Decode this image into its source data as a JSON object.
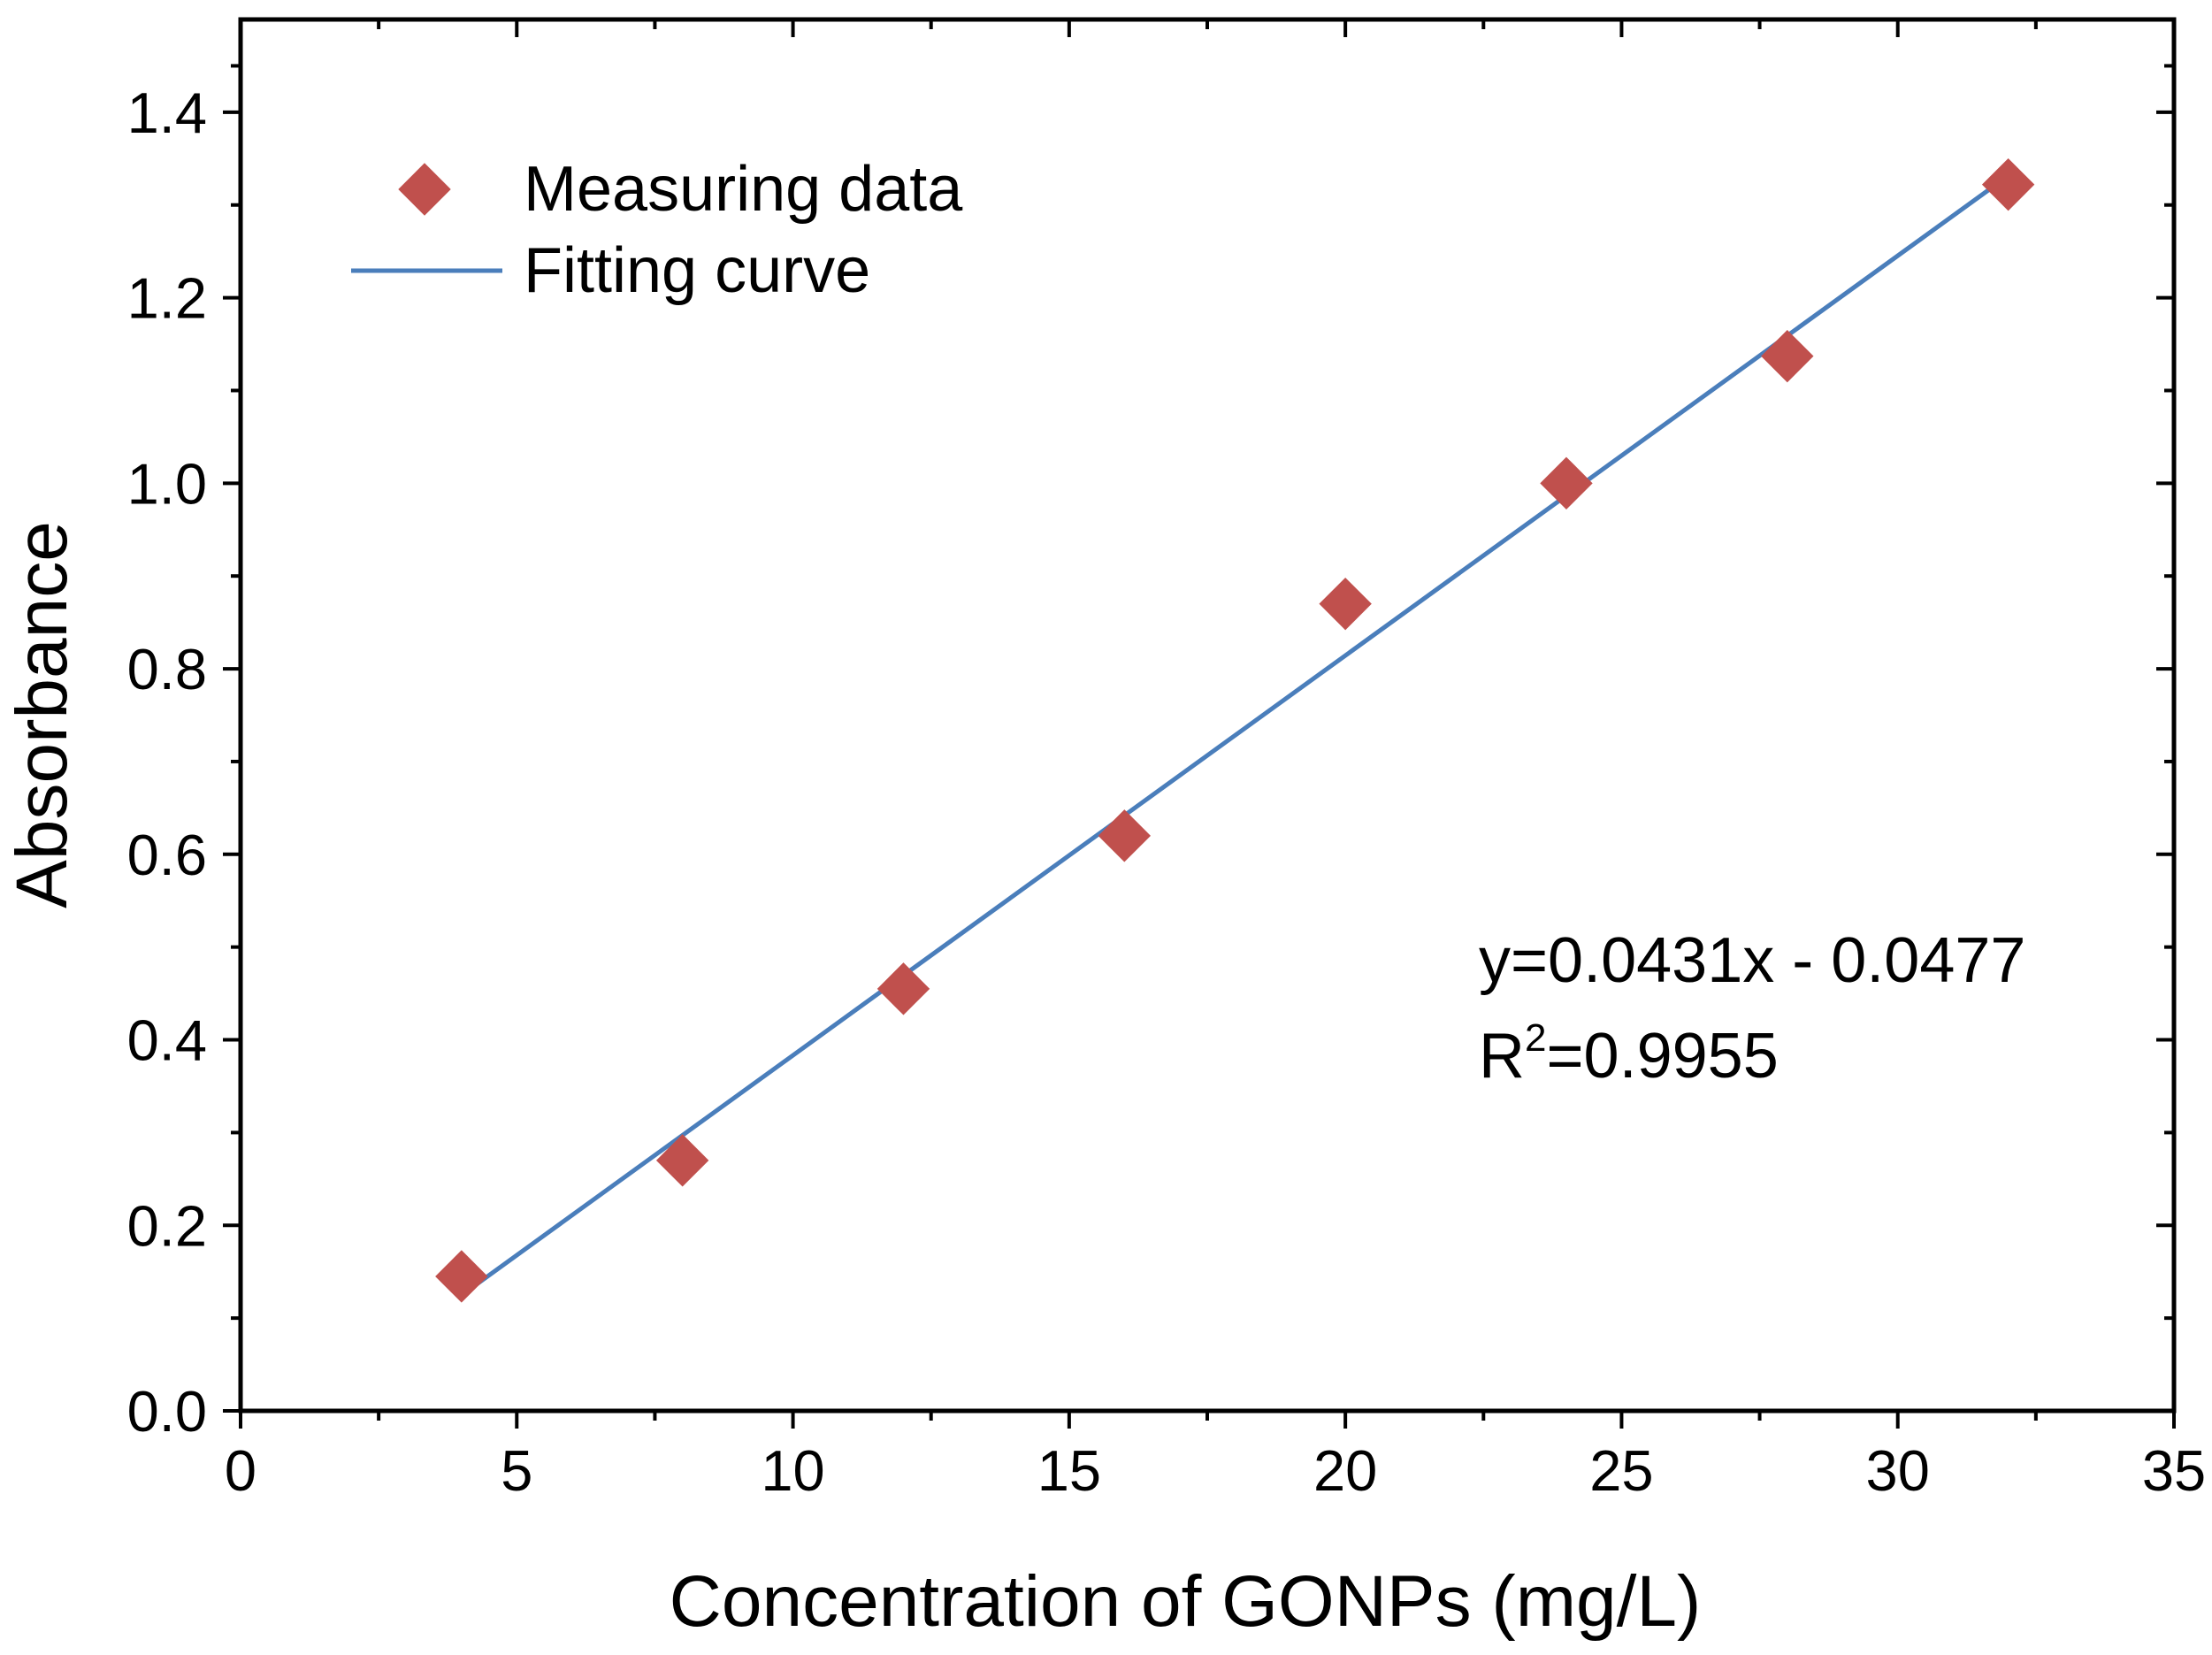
{
  "chart_data": {
    "type": "scatter",
    "title": "",
    "xlabel": "Concentration of GONPs  (mg/L)",
    "ylabel": "Absorbance",
    "xlim": [
      0,
      35
    ],
    "ylim": [
      0,
      1.5
    ],
    "x_ticks": [
      0,
      5,
      10,
      15,
      20,
      25,
      30,
      35
    ],
    "x_tick_labels": [
      "0",
      "5",
      "10",
      "15",
      "20",
      "25",
      "30",
      "35"
    ],
    "y_ticks": [
      0,
      0.2,
      0.4,
      0.6,
      0.8,
      1.0,
      1.2,
      1.4
    ],
    "y_tick_labels": [
      "0.0",
      "0.2",
      "0.4",
      "0.6",
      "0.8",
      "1.0",
      "1.2",
      "1.4"
    ],
    "grid": false,
    "legend_position": "top-left",
    "series": [
      {
        "name": "Measuring data",
        "kind": "scatter",
        "marker": "diamond",
        "color": "#C0504D",
        "x": [
          4,
          8,
          12,
          16,
          20,
          24,
          28,
          32
        ],
        "y": [
          0.145,
          0.27,
          0.455,
          0.62,
          0.87,
          1.0,
          1.137,
          1.322
        ]
      },
      {
        "name": "Fitting curve",
        "kind": "line",
        "color": "#4A7EBB",
        "slope": 0.0431,
        "intercept": -0.0477,
        "x_range": [
          4,
          32
        ]
      }
    ],
    "annotations": {
      "equation": "y=0.0431x - 0.0477",
      "r2_prefix": "R",
      "r2_exponent": "2",
      "r2_value": "=0.9955"
    }
  }
}
